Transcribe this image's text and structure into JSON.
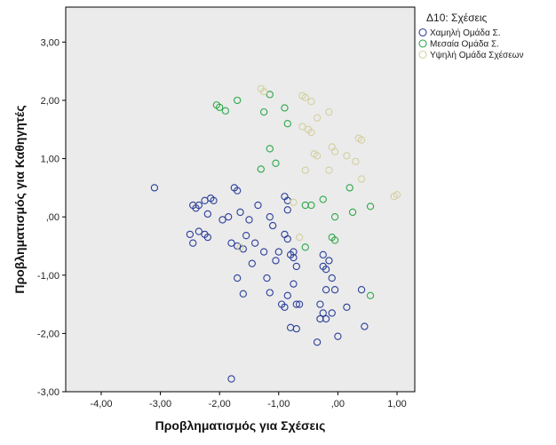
{
  "chart_data": {
    "type": "scatter",
    "xlabel": "Προβληματισμός για Σχέσεις",
    "ylabel": "Προβληματισμός για Καθηγητές",
    "xlim": [
      -4.6,
      1.3
    ],
    "ylim": [
      -3.0,
      3.6
    ],
    "x_ticks": [
      -4.0,
      -3.0,
      -2.0,
      -1.0,
      0.0,
      1.0
    ],
    "x_tick_labels": [
      "-4,00",
      "-3,00",
      "-2,00",
      "-1,00",
      ",00",
      "1,00"
    ],
    "y_ticks": [
      -3.0,
      -2.0,
      -1.0,
      0.0,
      1.0,
      2.0,
      3.0
    ],
    "y_tick_labels": [
      "-3,00",
      "-2,00",
      "-1,00",
      ",00",
      "1,00",
      "2,00",
      "3,00"
    ],
    "grid": false,
    "background": "#ebebeb",
    "legend_title": "Δ10: Σχέσεις",
    "legend_position": "right",
    "series": [
      {
        "name": "Χαμηλή Ομάδα Σ.",
        "color": "#2b3f9a",
        "points": [
          [
            -3.1,
            0.5
          ],
          [
            -2.45,
            0.2
          ],
          [
            -2.4,
            0.15
          ],
          [
            -2.35,
            0.2
          ],
          [
            -2.25,
            0.28
          ],
          [
            -2.2,
            0.05
          ],
          [
            -2.15,
            0.32
          ],
          [
            -2.1,
            0.28
          ],
          [
            -2.5,
            -0.3
          ],
          [
            -2.45,
            -0.45
          ],
          [
            -2.35,
            -0.25
          ],
          [
            -2.25,
            -0.3
          ],
          [
            -2.2,
            -0.35
          ],
          [
            -1.95,
            -0.05
          ],
          [
            -1.85,
            0.0
          ],
          [
            -1.75,
            0.5
          ],
          [
            -1.7,
            0.45
          ],
          [
            -1.65,
            0.08
          ],
          [
            -1.8,
            -0.45
          ],
          [
            -1.7,
            -0.5
          ],
          [
            -1.6,
            -0.55
          ],
          [
            -1.55,
            -0.32
          ],
          [
            -1.6,
            -1.32
          ],
          [
            -1.7,
            -1.05
          ],
          [
            -1.45,
            -0.8
          ],
          [
            -1.4,
            -0.45
          ],
          [
            -1.35,
            0.2
          ],
          [
            -1.25,
            -0.6
          ],
          [
            -1.2,
            -1.05
          ],
          [
            -1.15,
            -1.3
          ],
          [
            -1.1,
            -0.15
          ],
          [
            -1.05,
            -0.75
          ],
          [
            -1.0,
            -0.6
          ],
          [
            -0.95,
            -1.5
          ],
          [
            -0.9,
            -1.55
          ],
          [
            -0.9,
            0.35
          ],
          [
            -0.85,
            0.28
          ],
          [
            -0.9,
            -0.3
          ],
          [
            -0.85,
            -0.38
          ],
          [
            -0.8,
            -0.65
          ],
          [
            -0.75,
            -0.6
          ],
          [
            -0.75,
            -0.7
          ],
          [
            -0.7,
            -0.85
          ],
          [
            -0.75,
            -1.15
          ],
          [
            -0.85,
            -1.35
          ],
          [
            -0.7,
            -1.5
          ],
          [
            -0.65,
            -1.5
          ],
          [
            -0.8,
            -1.9
          ],
          [
            -0.7,
            -1.92
          ],
          [
            -0.3,
            -1.5
          ],
          [
            -0.25,
            -1.65
          ],
          [
            -0.2,
            -1.75
          ],
          [
            -0.3,
            -1.75
          ],
          [
            -0.35,
            -2.15
          ],
          [
            -0.25,
            -0.65
          ],
          [
            -0.25,
            -0.85
          ],
          [
            -0.2,
            -0.9
          ],
          [
            -0.2,
            -1.25
          ],
          [
            -0.15,
            -0.75
          ],
          [
            -0.1,
            -1.05
          ],
          [
            -0.05,
            -1.25
          ],
          [
            -0.1,
            -1.65
          ],
          [
            0.0,
            -2.05
          ],
          [
            0.15,
            -1.55
          ],
          [
            0.4,
            -1.25
          ],
          [
            0.45,
            -1.88
          ],
          [
            -1.8,
            -2.78
          ],
          [
            -1.15,
            0.0
          ],
          [
            -0.85,
            0.12
          ],
          [
            -1.5,
            -0.05
          ]
        ]
      },
      {
        "name": "Μεσαία Ομάδα Σ.",
        "color": "#2ea84a",
        "points": [
          [
            -2.05,
            1.92
          ],
          [
            -2.0,
            1.88
          ],
          [
            -1.9,
            1.82
          ],
          [
            -1.7,
            2.0
          ],
          [
            -1.25,
            1.8
          ],
          [
            -1.15,
            2.1
          ],
          [
            -0.9,
            1.87
          ],
          [
            -0.85,
            1.6
          ],
          [
            -1.15,
            1.17
          ],
          [
            -1.05,
            0.92
          ],
          [
            -1.3,
            0.82
          ],
          [
            -0.55,
            0.2
          ],
          [
            -0.45,
            0.2
          ],
          [
            -0.25,
            0.3
          ],
          [
            -0.05,
            0.0
          ],
          [
            -0.1,
            -0.35
          ],
          [
            -0.05,
            -0.4
          ],
          [
            -0.55,
            -0.52
          ],
          [
            0.2,
            0.5
          ],
          [
            0.25,
            0.08
          ],
          [
            0.55,
            0.18
          ],
          [
            0.55,
            -1.35
          ]
        ]
      },
      {
        "name": "Υψηλή Ομάδα Σχέσεων",
        "color": "#d4d0a0",
        "points": [
          [
            -1.3,
            2.2
          ],
          [
            -1.25,
            2.15
          ],
          [
            -0.6,
            2.08
          ],
          [
            -0.55,
            2.05
          ],
          [
            -0.45,
            1.98
          ],
          [
            -0.15,
            1.8
          ],
          [
            -0.35,
            1.7
          ],
          [
            -0.5,
            1.5
          ],
          [
            -0.45,
            1.45
          ],
          [
            -0.6,
            1.55
          ],
          [
            -0.4,
            1.08
          ],
          [
            -0.35,
            1.05
          ],
          [
            -0.1,
            1.2
          ],
          [
            -0.05,
            1.12
          ],
          [
            0.15,
            1.05
          ],
          [
            0.3,
            0.95
          ],
          [
            0.35,
            1.35
          ],
          [
            0.4,
            1.32
          ],
          [
            0.4,
            0.65
          ],
          [
            -0.55,
            0.8
          ],
          [
            -0.15,
            0.8
          ],
          [
            -0.75,
            0.25
          ],
          [
            -0.65,
            -0.35
          ],
          [
            -1.65,
            -0.52
          ],
          [
            1.0,
            0.38
          ],
          [
            0.95,
            0.35
          ]
        ]
      }
    ]
  }
}
